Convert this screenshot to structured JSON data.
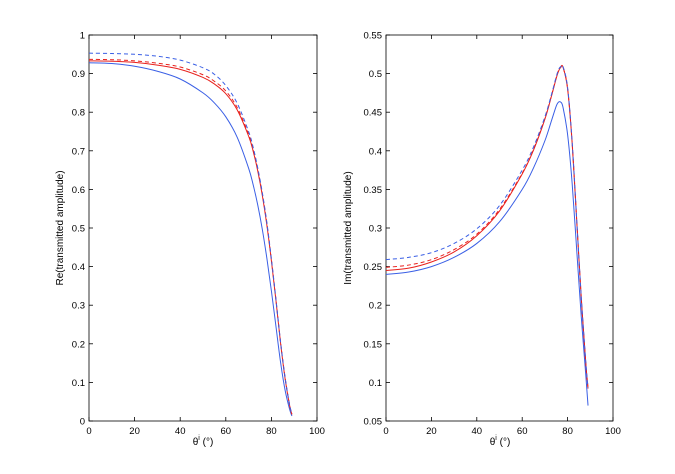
{
  "chart_data": [
    {
      "type": "line",
      "xlabel": "θ",
      "xlabel_sup": "i",
      "xlabel_unit": "(°)",
      "ylabel": "Re(transmitted amplitude)",
      "xlim": [
        0,
        100
      ],
      "ylim": [
        0,
        1
      ],
      "xticks": [
        "0",
        "20",
        "40",
        "60",
        "80",
        "100"
      ],
      "yticks": [
        "0",
        "0.1",
        "0.2",
        "0.3",
        "0.4",
        "0.5",
        "0.6",
        "0.7",
        "0.8",
        "0.9",
        "1"
      ],
      "xtick_values": [
        0,
        20,
        40,
        60,
        80,
        100
      ],
      "ytick_values": [
        0,
        0.1,
        0.2,
        0.3,
        0.4,
        0.5,
        0.6,
        0.7,
        0.8,
        0.9,
        1
      ],
      "grid": false,
      "series": [
        {
          "color": "#3a5fe5",
          "dash": "solid",
          "x": [
            0,
            10,
            20,
            30,
            40,
            50,
            55,
            60,
            65,
            70,
            72,
            74,
            76,
            78,
            80,
            82,
            84,
            86,
            88,
            89
          ],
          "y": [
            0.928,
            0.926,
            0.919,
            0.906,
            0.886,
            0.85,
            0.824,
            0.788,
            0.735,
            0.655,
            0.612,
            0.56,
            0.497,
            0.422,
            0.337,
            0.245,
            0.153,
            0.08,
            0.03,
            0.013
          ]
        },
        {
          "color": "#e8201c",
          "dash": "solid",
          "x": [
            0,
            10,
            20,
            30,
            40,
            50,
            55,
            60,
            65,
            70,
            72,
            74,
            76,
            78,
            80,
            82,
            84,
            86,
            88,
            89
          ],
          "y": [
            0.933,
            0.932,
            0.929,
            0.922,
            0.911,
            0.89,
            0.873,
            0.848,
            0.806,
            0.738,
            0.699,
            0.648,
            0.585,
            0.508,
            0.415,
            0.312,
            0.203,
            0.11,
            0.04,
            0.017
          ]
        },
        {
          "color": "#e8201c",
          "dash": "dashed",
          "x": [
            0,
            10,
            20,
            30,
            40,
            50,
            55,
            60,
            65,
            70,
            72,
            74,
            76,
            78,
            80,
            82,
            84,
            86,
            88,
            89
          ],
          "y": [
            0.937,
            0.936,
            0.933,
            0.927,
            0.917,
            0.897,
            0.88,
            0.855,
            0.812,
            0.743,
            0.703,
            0.652,
            0.589,
            0.512,
            0.418,
            0.314,
            0.205,
            0.112,
            0.041,
            0.018
          ]
        },
        {
          "color": "#3a5fe5",
          "dash": "dashed",
          "x": [
            0,
            10,
            20,
            30,
            40,
            50,
            55,
            60,
            65,
            70,
            72,
            74,
            76,
            78,
            80,
            82,
            84,
            86,
            88,
            89
          ],
          "y": [
            0.953,
            0.952,
            0.95,
            0.945,
            0.935,
            0.915,
            0.898,
            0.869,
            0.823,
            0.75,
            0.709,
            0.656,
            0.592,
            0.514,
            0.42,
            0.315,
            0.206,
            0.113,
            0.042,
            0.018
          ]
        }
      ]
    },
    {
      "type": "line",
      "xlabel": "θ",
      "xlabel_sup": "i",
      "xlabel_unit": "(°)",
      "ylabel": "Im(transmitted amplitude)",
      "xlim": [
        0,
        100
      ],
      "ylim": [
        0.05,
        0.55
      ],
      "xticks": [
        "0",
        "20",
        "40",
        "60",
        "80",
        "100"
      ],
      "yticks": [
        "0.05",
        "0.1",
        "0.15",
        "0.2",
        "0.25",
        "0.3",
        "0.35",
        "0.4",
        "0.45",
        "0.5",
        "0.55"
      ],
      "xtick_values": [
        0,
        20,
        40,
        60,
        80,
        100
      ],
      "ytick_values": [
        0.05,
        0.1,
        0.15,
        0.2,
        0.25,
        0.3,
        0.35,
        0.4,
        0.45,
        0.5,
        0.55
      ],
      "grid": false,
      "series": [
        {
          "color": "#3a5fe5",
          "dash": "solid",
          "x": [
            0,
            10,
            20,
            30,
            40,
            50,
            60,
            65,
            70,
            73,
            75,
            76,
            77,
            78,
            80,
            82,
            84,
            86,
            88,
            89
          ],
          "y": [
            0.24,
            0.243,
            0.25,
            0.262,
            0.28,
            0.308,
            0.35,
            0.378,
            0.413,
            0.44,
            0.458,
            0.463,
            0.463,
            0.456,
            0.421,
            0.358,
            0.272,
            0.186,
            0.11,
            0.07
          ]
        },
        {
          "color": "#e8201c",
          "dash": "solid",
          "x": [
            0,
            10,
            20,
            30,
            40,
            50,
            60,
            65,
            70,
            73,
            75,
            76,
            77,
            78,
            80,
            82,
            84,
            86,
            88,
            89
          ],
          "y": [
            0.245,
            0.248,
            0.256,
            0.269,
            0.29,
            0.322,
            0.37,
            0.401,
            0.441,
            0.472,
            0.494,
            0.503,
            0.508,
            0.508,
            0.48,
            0.41,
            0.31,
            0.21,
            0.125,
            0.092
          ]
        },
        {
          "color": "#e8201c",
          "dash": "dashed",
          "x": [
            0,
            10,
            20,
            30,
            40,
            50,
            60,
            65,
            70,
            73,
            75,
            76,
            77,
            78,
            80,
            82,
            84,
            86,
            88,
            89
          ],
          "y": [
            0.249,
            0.252,
            0.259,
            0.272,
            0.292,
            0.324,
            0.371,
            0.402,
            0.442,
            0.473,
            0.495,
            0.504,
            0.509,
            0.508,
            0.481,
            0.411,
            0.311,
            0.211,
            0.126,
            0.093
          ]
        },
        {
          "color": "#3a5fe5",
          "dash": "dashed",
          "x": [
            0,
            10,
            20,
            30,
            40,
            50,
            60,
            65,
            70,
            73,
            75,
            76,
            77,
            78,
            80,
            82,
            84,
            86,
            88,
            89
          ],
          "y": [
            0.259,
            0.262,
            0.268,
            0.28,
            0.299,
            0.329,
            0.375,
            0.405,
            0.444,
            0.474,
            0.496,
            0.505,
            0.509,
            0.509,
            0.482,
            0.412,
            0.312,
            0.212,
            0.127,
            0.093
          ]
        }
      ]
    }
  ]
}
